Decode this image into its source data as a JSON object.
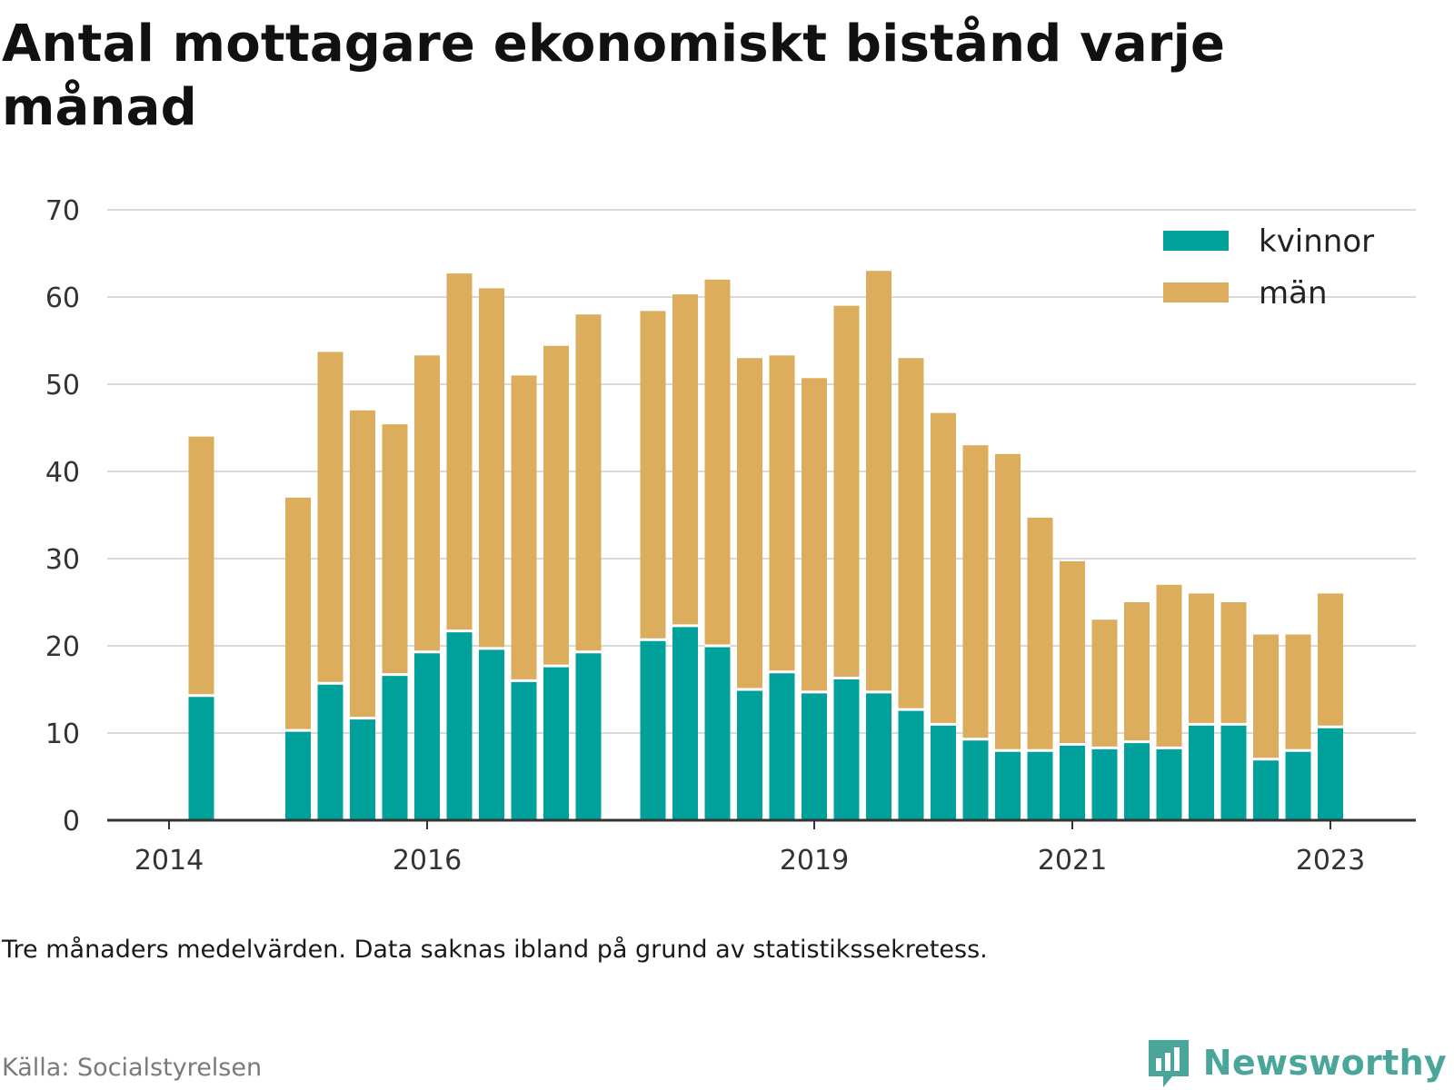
{
  "title": "Antal mottagare ekonomiskt bistånd varje månad",
  "note": "Tre månaders medelvärden. Data saknas ibland på grund av statistikssekretess.",
  "source": "Källa: Socialstyrelsen",
  "brand": "Newsworthy",
  "colors": {
    "kvinnor": "#00a19a",
    "man": "#dbad5c",
    "grid": "#d9d9d9",
    "axis": "#333333",
    "brand": "#4aa69a"
  },
  "icons": {
    "brand_logo": "chat-bubble-bar-chart-icon"
  },
  "chart_data": {
    "type": "bar",
    "stacked": true,
    "ylim": [
      0,
      70
    ],
    "yticks": [
      0,
      10,
      20,
      30,
      40,
      50,
      60,
      70
    ],
    "xticks": [
      {
        "label": "2014",
        "at": 0
      },
      {
        "label": "2016",
        "at": 8
      },
      {
        "label": "2019",
        "at": 20
      },
      {
        "label": "2021",
        "at": 28
      },
      {
        "label": "2023",
        "at": 36
      }
    ],
    "grid": true,
    "legend_position": "top-right",
    "series": [
      {
        "name": "kvinnor",
        "color": "#00a19a",
        "values": [
          null,
          14.3,
          null,
          null,
          10.3,
          15.7,
          11.7,
          16.7,
          19.3,
          21.7,
          19.7,
          16.0,
          17.7,
          19.3,
          null,
          20.7,
          22.3,
          20.0,
          15.0,
          17.0,
          14.7,
          16.3,
          14.7,
          12.7,
          11.0,
          9.3,
          8.0,
          8.0,
          8.7,
          8.3,
          9.0,
          8.3,
          11.0,
          11.0,
          7.0,
          8.0,
          10.7
        ]
      },
      {
        "name": "män",
        "color": "#dbad5c",
        "values": [
          null,
          29.7,
          null,
          null,
          26.7,
          38.0,
          35.3,
          28.7,
          34.0,
          41.0,
          41.3,
          35.0,
          36.7,
          38.7,
          null,
          37.7,
          38.0,
          42.0,
          38.0,
          36.3,
          36.0,
          42.7,
          48.3,
          40.3,
          35.7,
          33.7,
          34.0,
          26.7,
          21.0,
          14.7,
          16.0,
          18.7,
          15.0,
          14.0,
          14.3,
          13.3,
          15.3
        ]
      }
    ]
  }
}
